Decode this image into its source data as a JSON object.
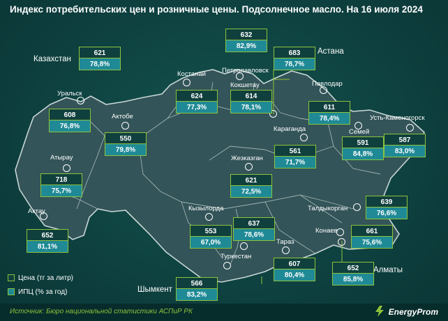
{
  "title": "Индекс потребительских цен и розничные цены. Подсолнечное масло. На 16 июля 2024",
  "regions": [
    {
      "id": "kazakhstan",
      "name": "Казахстан",
      "price": "621",
      "cpi": "78,8%"
    },
    {
      "id": "astana",
      "name": "Астана",
      "price": "683",
      "cpi": "78,7%"
    },
    {
      "id": "petropavlovsk",
      "name": "Петропавловск",
      "price": "632",
      "cpi": "82,9%"
    },
    {
      "id": "kostanay",
      "name": "Костанай",
      "price": "624",
      "cpi": "77,3%"
    },
    {
      "id": "kokshetau",
      "name": "Кокшетау",
      "price": "614",
      "cpi": "78,1%"
    },
    {
      "id": "pavlodar",
      "name": "Павлодар",
      "price": "611",
      "cpi": "78,4%"
    },
    {
      "id": "uralsk",
      "name": "Уральск",
      "price": "608",
      "cpi": "76,8%"
    },
    {
      "id": "aktobe",
      "name": "Актобе",
      "price": "550",
      "cpi": "79,8%"
    },
    {
      "id": "karaganda",
      "name": "Караганда",
      "price": "561",
      "cpi": "71,7%"
    },
    {
      "id": "semey",
      "name": "Семей",
      "price": "591",
      "cpi": "84,8%"
    },
    {
      "id": "ust-kamenogorsk",
      "name": "Усть-Каменогорск",
      "price": "587",
      "cpi": "83,0%"
    },
    {
      "id": "atyrau",
      "name": "Атырау",
      "price": "718",
      "cpi": "75,7%"
    },
    {
      "id": "zhezkazgan",
      "name": "Жезказган",
      "price": "621",
      "cpi": "72,5%"
    },
    {
      "id": "aktau",
      "name": "Актау",
      "price": "652",
      "cpi": "81,1%"
    },
    {
      "id": "kyzylorda",
      "name": "Кызылорда",
      "price": "553",
      "cpi": "67,0%"
    },
    {
      "id": "turkestan",
      "name": "Туркестан",
      "price": "637",
      "cpi": "78,6%"
    },
    {
      "id": "taldykorgan",
      "name": "Талдыкорган",
      "price": "639",
      "cpi": "76,6%"
    },
    {
      "id": "konaev",
      "name": "Конаев",
      "price": "661",
      "cpi": "75,6%"
    },
    {
      "id": "taraz",
      "name": "Тараз",
      "price": "607",
      "cpi": "80,4%"
    },
    {
      "id": "almaty",
      "name": "Алматы",
      "price": "652",
      "cpi": "85,8%"
    },
    {
      "id": "shymkent",
      "name": "Шымкент",
      "price": "566",
      "cpi": "83,2%"
    }
  ],
  "legend": {
    "price_label": "Цена (тг за литр)",
    "cpi_label": "ИПЦ (% за год)"
  },
  "footer": {
    "source": "Источник: Бюро национальной статистики АСПиР РК",
    "brand": "EnergyProm"
  },
  "colors": {
    "background": "#0f4543",
    "map_fill": "#335458",
    "map_border": "#9fb4b4",
    "accent_green": "#8dc33a",
    "cpi_fill": "#1f8a96"
  }
}
